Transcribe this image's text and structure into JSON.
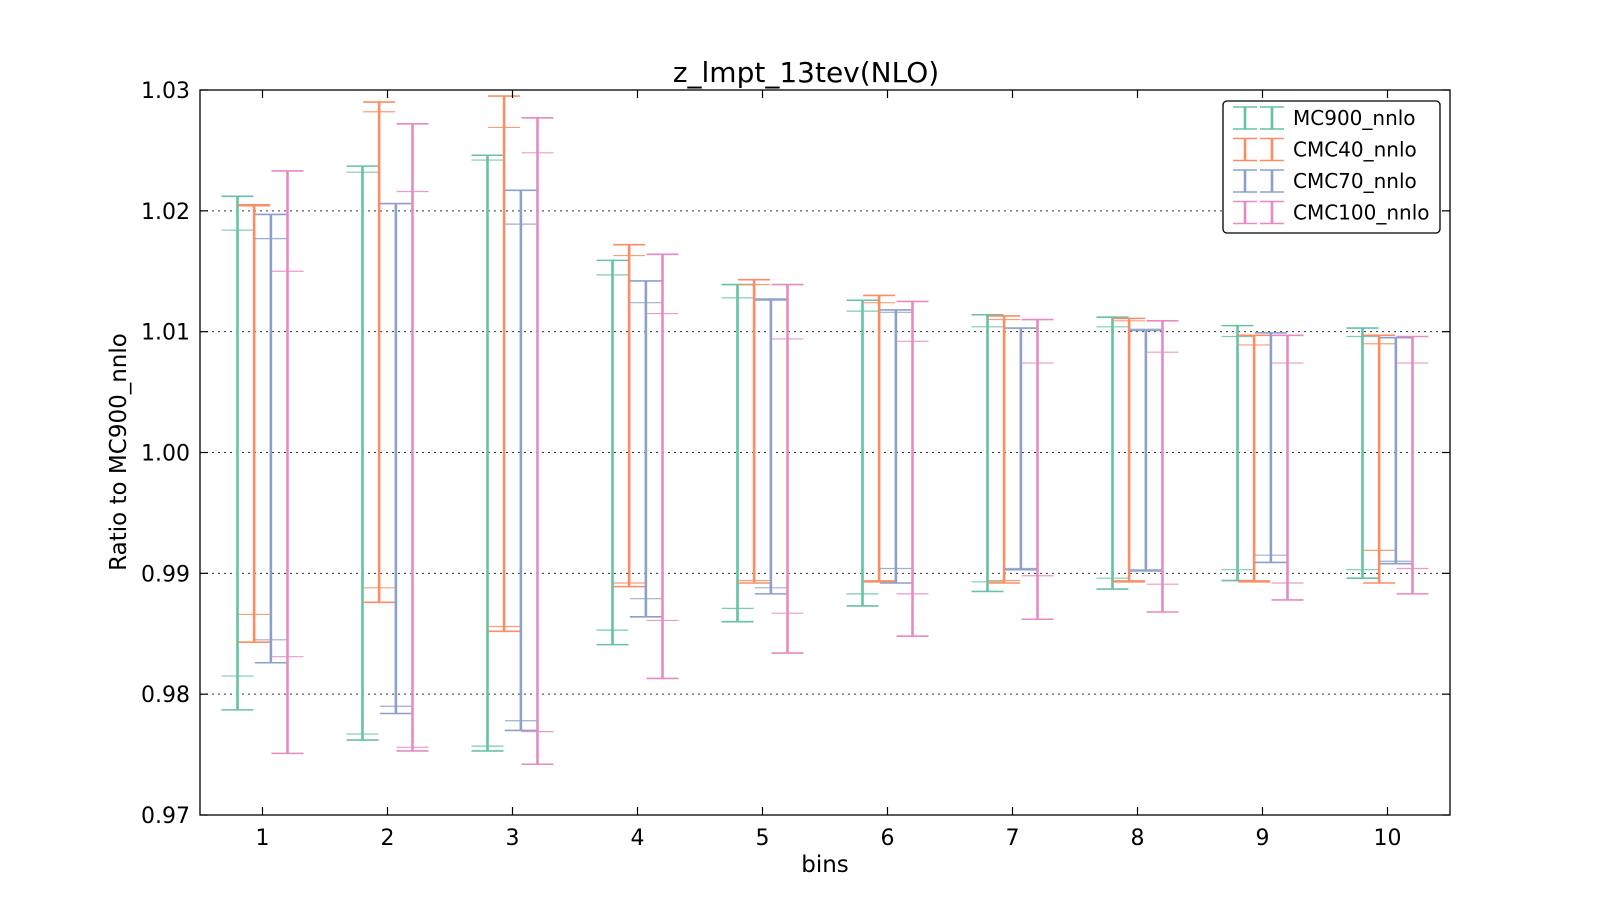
{
  "chart_data": {
    "type": "errorbar",
    "title": "z_lmpt_13tev(NLO)",
    "xlabel": "bins",
    "ylabel": "Ratio to MC900_nnlo",
    "ylim": [
      0.97,
      1.03
    ],
    "xlim": [
      0.5,
      10.5
    ],
    "yticks": [
      "0.97",
      "0.98",
      "0.99",
      "1.00",
      "1.01",
      "1.02",
      "1.03"
    ],
    "xticks": [
      "1",
      "2",
      "3",
      "4",
      "5",
      "6",
      "7",
      "8",
      "9",
      "10"
    ],
    "grid": "horizontal-dotted",
    "legend_position": "top-right",
    "categories": [
      1,
      2,
      3,
      4,
      5,
      6,
      7,
      8,
      9,
      10
    ],
    "series": [
      {
        "name": "MC900_nnlo",
        "color": "#66c2a5",
        "offset": -0.2,
        "outer": [
          [
            0.9787,
            1.0212
          ],
          [
            0.9762,
            1.0237
          ],
          [
            0.9753,
            1.0246
          ],
          [
            0.9841,
            1.0159
          ],
          [
            0.986,
            1.0139
          ],
          [
            0.9873,
            1.0126
          ],
          [
            0.9885,
            1.0114
          ],
          [
            0.9887,
            1.0112
          ],
          [
            0.9894,
            1.0105
          ],
          [
            0.9896,
            1.0103
          ]
        ],
        "inner": [
          [
            0.9815,
            1.0184
          ],
          [
            0.9767,
            1.0232
          ],
          [
            0.9757,
            1.0242
          ],
          [
            0.9853,
            1.0147
          ],
          [
            0.9871,
            1.0128
          ],
          [
            0.9883,
            1.0117
          ],
          [
            0.9893,
            1.0104
          ],
          [
            0.9896,
            1.0104
          ],
          [
            0.9903,
            1.0096
          ],
          [
            0.9903,
            1.0096
          ]
        ]
      },
      {
        "name": "CMC40_nnlo",
        "color": "#fc8d62",
        "offset": -0.067,
        "outer": [
          [
            0.9843,
            1.0205
          ],
          [
            0.9876,
            1.029
          ],
          [
            0.9852,
            1.0295
          ],
          [
            0.9889,
            1.0172
          ],
          [
            0.9892,
            1.0143
          ],
          [
            0.9893,
            1.013
          ],
          [
            0.9892,
            1.0113
          ],
          [
            0.9893,
            1.0111
          ],
          [
            0.9893,
            1.0097
          ],
          [
            0.9892,
            1.0097
          ]
        ],
        "inner": [
          [
            0.9866,
            1.0204
          ],
          [
            0.9888,
            1.0282
          ],
          [
            0.9856,
            1.0269
          ],
          [
            0.9892,
            1.0163
          ],
          [
            0.9894,
            1.0139
          ],
          [
            0.9894,
            1.0124
          ],
          [
            0.9894,
            1.011
          ],
          [
            0.9894,
            1.0109
          ],
          [
            0.9894,
            1.0089
          ],
          [
            0.9919,
            1.009
          ]
        ]
      },
      {
        "name": "CMC70_nnlo",
        "color": "#8da0cb",
        "offset": 0.067,
        "outer": [
          [
            0.9826,
            1.0197
          ],
          [
            0.9784,
            1.0206
          ],
          [
            0.977,
            1.0217
          ],
          [
            0.9864,
            1.0142
          ],
          [
            0.9883,
            1.0127
          ],
          [
            0.9892,
            1.0118
          ],
          [
            0.9903,
            1.0103
          ],
          [
            0.9902,
            1.0101
          ],
          [
            0.9909,
            1.0099
          ],
          [
            0.9908,
            1.0095
          ]
        ],
        "inner": [
          [
            0.9845,
            1.0177
          ],
          [
            0.979,
            1.0206
          ],
          [
            0.9778,
            1.0189
          ],
          [
            0.9879,
            1.0124
          ],
          [
            0.9888,
            1.0126
          ],
          [
            0.9904,
            1.0116
          ],
          [
            0.9904,
            1.0103
          ],
          [
            0.9903,
            1.0102
          ],
          [
            0.9915,
            1.0099
          ],
          [
            0.991,
            1.0095
          ]
        ]
      },
      {
        "name": "CMC100_nnlo",
        "color": "#e78ac3",
        "offset": 0.2,
        "outer": [
          [
            0.9751,
            1.0233
          ],
          [
            0.9753,
            1.0272
          ],
          [
            0.9742,
            1.0277
          ],
          [
            0.9813,
            1.0164
          ],
          [
            0.9834,
            1.0139
          ],
          [
            0.9848,
            1.0125
          ],
          [
            0.9862,
            1.011
          ],
          [
            0.9868,
            1.0109
          ],
          [
            0.9878,
            1.0097
          ],
          [
            0.9883,
            1.0096
          ]
        ],
        "inner": [
          [
            0.9831,
            1.015
          ],
          [
            0.9756,
            1.0216
          ],
          [
            0.9769,
            1.0248
          ],
          [
            0.9861,
            1.0115
          ],
          [
            0.9867,
            1.0094
          ],
          [
            0.9883,
            1.0092
          ],
          [
            0.9898,
            1.0074
          ],
          [
            0.9891,
            1.0083
          ],
          [
            0.9892,
            1.0074
          ],
          [
            0.9904,
            1.0074
          ]
        ]
      }
    ]
  }
}
